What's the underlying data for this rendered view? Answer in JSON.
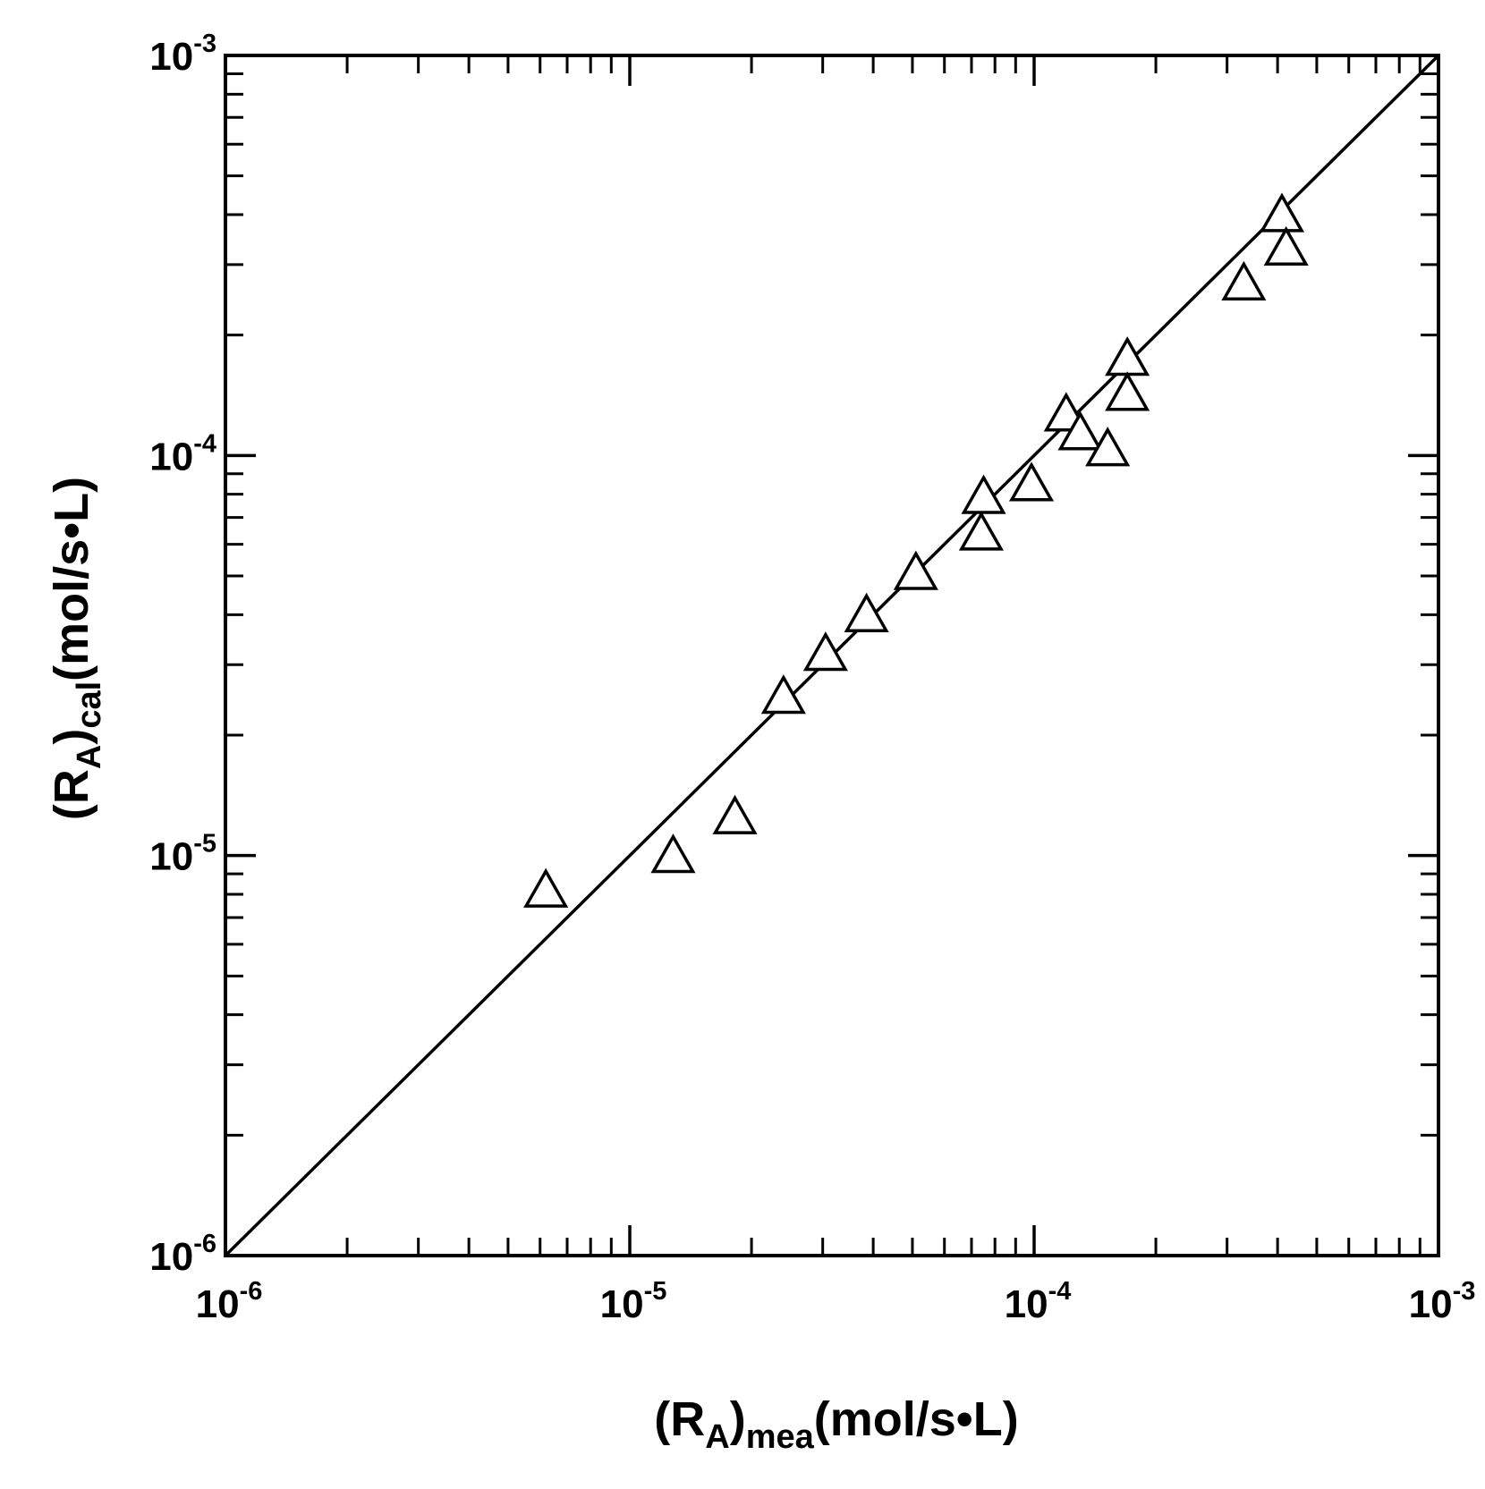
{
  "chart_data": {
    "type": "scatter",
    "title": "",
    "x_scale": "log",
    "y_scale": "log",
    "xlim": [
      1e-06,
      0.001
    ],
    "ylim": [
      1e-06,
      0.001
    ],
    "grid": false,
    "legend": "none",
    "xlabel": {
      "prefix": "(R",
      "sub1": "A",
      "mid": ")",
      "sub2": "mea",
      "suffix": "(mol/s•L)"
    },
    "ylabel": {
      "prefix": "(R",
      "sub1": "A",
      "mid": ")",
      "sub2": "cal",
      "suffix": "(mol/s•L)"
    },
    "x_ticks": [
      {
        "value": 1e-06,
        "base": "10",
        "exp": "-6"
      },
      {
        "value": 1e-05,
        "base": "10",
        "exp": "-5"
      },
      {
        "value": 0.0001,
        "base": "10",
        "exp": "-4"
      },
      {
        "value": 0.001,
        "base": "10",
        "exp": "-3"
      }
    ],
    "y_ticks": [
      {
        "value": 1e-06,
        "base": "10",
        "exp": "-6"
      },
      {
        "value": 1e-05,
        "base": "10",
        "exp": "-5"
      },
      {
        "value": 0.0001,
        "base": "10",
        "exp": "-4"
      },
      {
        "value": 0.001,
        "base": "10",
        "exp": "-3"
      }
    ],
    "marker": "open-triangle",
    "line_color": "#000000",
    "parity_line": {
      "x": [
        1e-06,
        0.001
      ],
      "y": [
        1e-06,
        0.001
      ]
    },
    "series": [
      {
        "points": [
          {
            "x": 6.2e-06,
            "y": 8.2e-06
          },
          {
            "x": 1.28e-05,
            "y": 1e-05
          },
          {
            "x": 1.82e-05,
            "y": 1.25e-05
          },
          {
            "x": 2.4e-05,
            "y": 2.5e-05
          },
          {
            "x": 3.05e-05,
            "y": 3.2e-05
          },
          {
            "x": 3.85e-05,
            "y": 4e-05
          },
          {
            "x": 5.1e-05,
            "y": 5.1e-05
          },
          {
            "x": 7.4e-05,
            "y": 6.4e-05
          },
          {
            "x": 7.5e-05,
            "y": 7.9e-05
          },
          {
            "x": 9.85e-05,
            "y": 8.5e-05
          },
          {
            "x": 0.00012,
            "y": 0.000127
          },
          {
            "x": 0.00013,
            "y": 0.000114
          },
          {
            "x": 0.000152,
            "y": 0.000104
          },
          {
            "x": 0.00017,
            "y": 0.000175
          },
          {
            "x": 0.00017,
            "y": 0.000143
          },
          {
            "x": 0.00033,
            "y": 0.00027
          },
          {
            "x": 0.00041,
            "y": 0.0004
          },
          {
            "x": 0.00042,
            "y": 0.00033
          }
        ]
      }
    ]
  }
}
